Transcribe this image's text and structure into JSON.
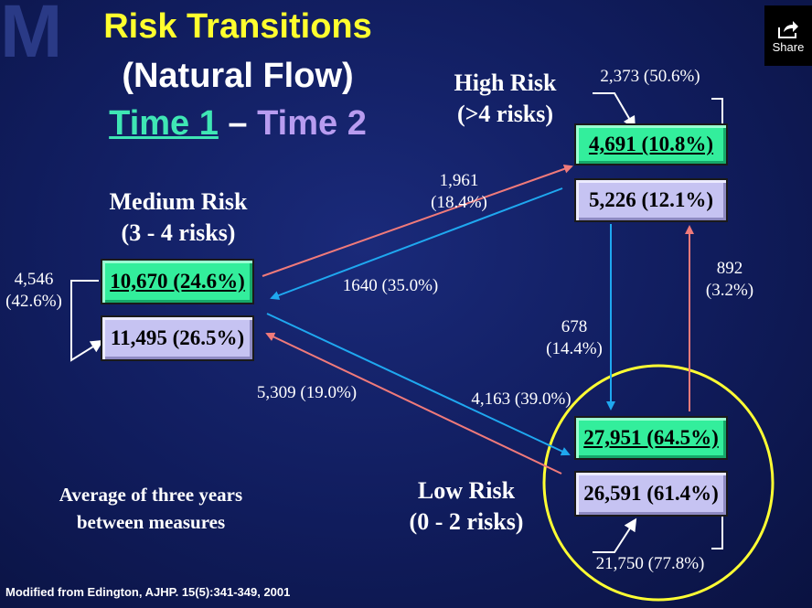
{
  "logo_letter": "M",
  "title": {
    "line1": "Risk Transitions",
    "line2": "(Natural Flow)",
    "time1": "Time 1",
    "dash": " – ",
    "time2": "Time 2"
  },
  "share": {
    "label": "Share",
    "icon": "share-icon"
  },
  "high": {
    "label1": "High Risk",
    "label2": "(>4 risks)",
    "t1": "4,691 (10.8%)",
    "t2": "5,226 (12.1%)",
    "stay": "2,373 (50.6%)"
  },
  "medium": {
    "label1": "Medium Risk",
    "label2": "(3 - 4 risks)",
    "t1": "10,670 (24.6%)",
    "t2": "11,495 (26.5%)",
    "stay1": "4,546",
    "stay2": "(42.6%)"
  },
  "low": {
    "label1": "Low Risk",
    "label2": "(0 - 2 risks)",
    "t1": "27,951 (64.5%)",
    "t2": "26,591 (61.4%)",
    "stay": "21,750 (77.8%)"
  },
  "flows": {
    "med_to_high_1": "1,961",
    "med_to_high_2": "(18.4%)",
    "high_to_med": "1640 (35.0%)",
    "high_to_low_1": "678",
    "high_to_low_2": "(14.4%)",
    "low_to_high_1": "892",
    "low_to_high_2": "(3.2%)",
    "low_to_med": "5,309 (19.0%)",
    "med_to_low": "4,163 (39.0%)"
  },
  "note": {
    "line1": "Average of three years",
    "line2": "between measures"
  },
  "credit": "Modified from Edington, AJHP. 15(5):341-349, 2001",
  "colors": {
    "green_box": "#33ee9c",
    "lavender_box": "#c6c3f2",
    "red_arrow": "#f07a7a",
    "blue_arrow": "#1fa8f0",
    "yellow_circle": "#ffff33",
    "title_yellow": "#ffff2e"
  }
}
